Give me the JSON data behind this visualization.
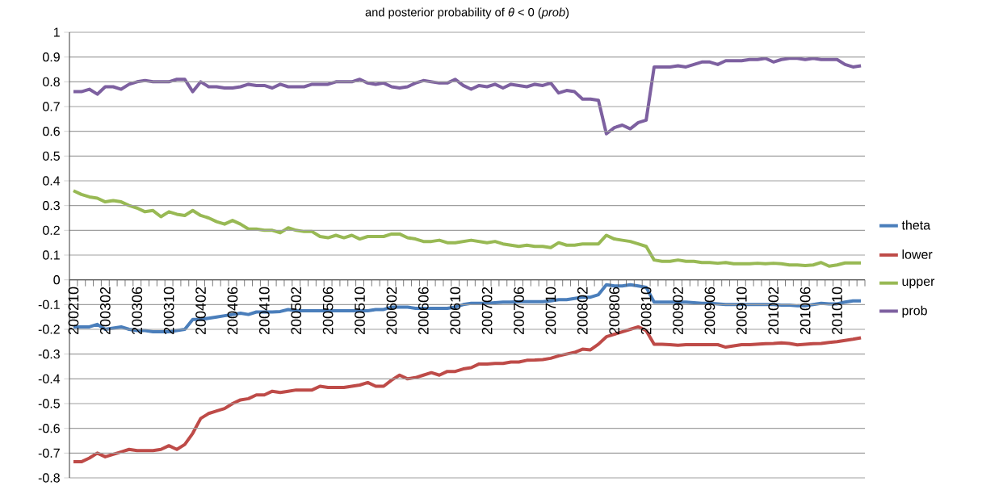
{
  "chart_data": {
    "type": "line",
    "title": "and posterior probability of *θ* < 0 (*prob*)",
    "categories": [
      "200210",
      null,
      null,
      null,
      "200302",
      null,
      null,
      null,
      "200306",
      null,
      null,
      null,
      "200310",
      null,
      null,
      null,
      "200402",
      null,
      null,
      null,
      "200406",
      null,
      null,
      null,
      "200410",
      null,
      null,
      null,
      "200502",
      null,
      null,
      null,
      "200506",
      null,
      null,
      null,
      "200510",
      null,
      null,
      null,
      "200602",
      null,
      null,
      null,
      "200606",
      null,
      null,
      null,
      "200610",
      null,
      null,
      null,
      "200702",
      null,
      null,
      null,
      "200706",
      null,
      null,
      null,
      "200710",
      null,
      null,
      null,
      "200802",
      null,
      null,
      null,
      "200806",
      null,
      null,
      null,
      "200810",
      null,
      null,
      null,
      "200902",
      null,
      null,
      null,
      "200906",
      null,
      null,
      null,
      "200910",
      null,
      null,
      null,
      "201002",
      null,
      null,
      null,
      "201006",
      null,
      null,
      null,
      "201010",
      null,
      null,
      null
    ],
    "series": [
      {
        "name": "theta",
        "color": "#4a7ebb",
        "values": [
          -0.19,
          -0.19,
          -0.19,
          -0.18,
          -0.2,
          -0.195,
          -0.19,
          -0.2,
          -0.205,
          -0.205,
          -0.21,
          -0.21,
          -0.21,
          -0.205,
          -0.2,
          -0.16,
          -0.16,
          -0.155,
          -0.15,
          -0.145,
          -0.14,
          -0.135,
          -0.14,
          -0.13,
          -0.13,
          -0.13,
          -0.128,
          -0.12,
          -0.125,
          -0.125,
          -0.125,
          -0.125,
          -0.125,
          -0.125,
          -0.125,
          -0.125,
          -0.125,
          -0.125,
          -0.12,
          -0.12,
          -0.11,
          -0.11,
          -0.11,
          -0.115,
          -0.115,
          -0.115,
          -0.115,
          -0.115,
          -0.11,
          -0.1,
          -0.095,
          -0.095,
          -0.095,
          -0.092,
          -0.09,
          -0.09,
          -0.088,
          -0.088,
          -0.088,
          -0.088,
          -0.085,
          -0.08,
          -0.08,
          -0.075,
          -0.07,
          -0.07,
          -0.06,
          -0.02,
          -0.025,
          -0.025,
          -0.02,
          -0.025,
          -0.03,
          -0.09,
          -0.09,
          -0.09,
          -0.09,
          -0.09,
          -0.092,
          -0.095,
          -0.095,
          -0.097,
          -0.1,
          -0.1,
          -0.1,
          -0.1,
          -0.1,
          -0.1,
          -0.1,
          -0.102,
          -0.102,
          -0.105,
          -0.105,
          -0.1,
          -0.095,
          -0.097,
          -0.097,
          -0.09,
          -0.085,
          -0.085
        ]
      },
      {
        "name": "lower",
        "color": "#be4b48",
        "values": [
          -0.735,
          -0.735,
          -0.72,
          -0.7,
          -0.715,
          -0.705,
          -0.695,
          -0.685,
          -0.69,
          -0.69,
          -0.69,
          -0.685,
          -0.67,
          -0.685,
          -0.665,
          -0.62,
          -0.56,
          -0.54,
          -0.53,
          -0.52,
          -0.5,
          -0.485,
          -0.48,
          -0.465,
          -0.465,
          -0.45,
          -0.455,
          -0.45,
          -0.445,
          -0.445,
          -0.445,
          -0.43,
          -0.435,
          -0.435,
          -0.435,
          -0.43,
          -0.425,
          -0.415,
          -0.43,
          -0.43,
          -0.405,
          -0.385,
          -0.4,
          -0.395,
          -0.385,
          -0.375,
          -0.385,
          -0.37,
          -0.37,
          -0.36,
          -0.355,
          -0.34,
          -0.34,
          -0.338,
          -0.338,
          -0.332,
          -0.332,
          -0.325,
          -0.324,
          -0.322,
          -0.317,
          -0.307,
          -0.3,
          -0.293,
          -0.28,
          -0.283,
          -0.26,
          -0.23,
          -0.22,
          -0.21,
          -0.2,
          -0.19,
          -0.205,
          -0.26,
          -0.26,
          -0.262,
          -0.264,
          -0.262,
          -0.262,
          -0.262,
          -0.262,
          -0.262,
          -0.272,
          -0.267,
          -0.262,
          -0.262,
          -0.26,
          -0.258,
          -0.257,
          -0.255,
          -0.257,
          -0.263,
          -0.26,
          -0.258,
          -0.257,
          -0.253,
          -0.25,
          -0.245,
          -0.24,
          -0.234
        ]
      },
      {
        "name": "upper",
        "color": "#98b954",
        "values": [
          0.36,
          0.345,
          0.335,
          0.33,
          0.315,
          0.32,
          0.315,
          0.3,
          0.29,
          0.275,
          0.28,
          0.255,
          0.275,
          0.265,
          0.26,
          0.28,
          0.26,
          0.25,
          0.235,
          0.225,
          0.24,
          0.225,
          0.205,
          0.205,
          0.2,
          0.2,
          0.19,
          0.21,
          0.2,
          0.195,
          0.195,
          0.175,
          0.17,
          0.18,
          0.17,
          0.18,
          0.165,
          0.175,
          0.175,
          0.175,
          0.185,
          0.185,
          0.17,
          0.165,
          0.155,
          0.155,
          0.16,
          0.15,
          0.15,
          0.155,
          0.16,
          0.155,
          0.15,
          0.155,
          0.145,
          0.14,
          0.135,
          0.14,
          0.135,
          0.135,
          0.13,
          0.15,
          0.14,
          0.14,
          0.145,
          0.145,
          0.145,
          0.18,
          0.165,
          0.16,
          0.155,
          0.145,
          0.135,
          0.08,
          0.075,
          0.075,
          0.08,
          0.075,
          0.075,
          0.07,
          0.07,
          0.067,
          0.07,
          0.065,
          0.065,
          0.065,
          0.067,
          0.065,
          0.067,
          0.065,
          0.06,
          0.06,
          0.058,
          0.06,
          0.07,
          0.055,
          0.06,
          0.068,
          0.068,
          0.068
        ]
      },
      {
        "name": "prob",
        "color": "#7d60a0",
        "values": [
          0.76,
          0.76,
          0.77,
          0.75,
          0.78,
          0.78,
          0.77,
          0.79,
          0.8,
          0.805,
          0.8,
          0.8,
          0.8,
          0.81,
          0.81,
          0.76,
          0.8,
          0.78,
          0.78,
          0.775,
          0.775,
          0.78,
          0.79,
          0.785,
          0.785,
          0.775,
          0.79,
          0.78,
          0.78,
          0.78,
          0.79,
          0.79,
          0.79,
          0.8,
          0.8,
          0.8,
          0.81,
          0.795,
          0.79,
          0.795,
          0.78,
          0.775,
          0.78,
          0.795,
          0.805,
          0.8,
          0.795,
          0.795,
          0.81,
          0.785,
          0.77,
          0.785,
          0.78,
          0.79,
          0.775,
          0.79,
          0.785,
          0.78,
          0.79,
          0.785,
          0.795,
          0.755,
          0.765,
          0.76,
          0.73,
          0.73,
          0.725,
          0.59,
          0.615,
          0.625,
          0.61,
          0.635,
          0.645,
          0.86,
          0.86,
          0.86,
          0.865,
          0.86,
          0.87,
          0.88,
          0.88,
          0.87,
          0.885,
          0.885,
          0.885,
          0.89,
          0.89,
          0.895,
          0.88,
          0.89,
          0.895,
          0.895,
          0.89,
          0.895,
          0.89,
          0.89,
          0.89,
          0.87,
          0.86,
          0.865
        ]
      }
    ],
    "ylim": [
      -0.8,
      1
    ],
    "yticks": [
      -0.8,
      -0.7,
      -0.6,
      -0.5,
      -0.4,
      -0.3,
      -0.2,
      -0.1,
      0,
      0.1,
      0.2,
      0.3,
      0.4,
      0.5,
      0.6,
      0.7,
      0.8,
      0.9,
      1
    ],
    "grid": "y",
    "legend": "right",
    "line_style": "solid"
  }
}
